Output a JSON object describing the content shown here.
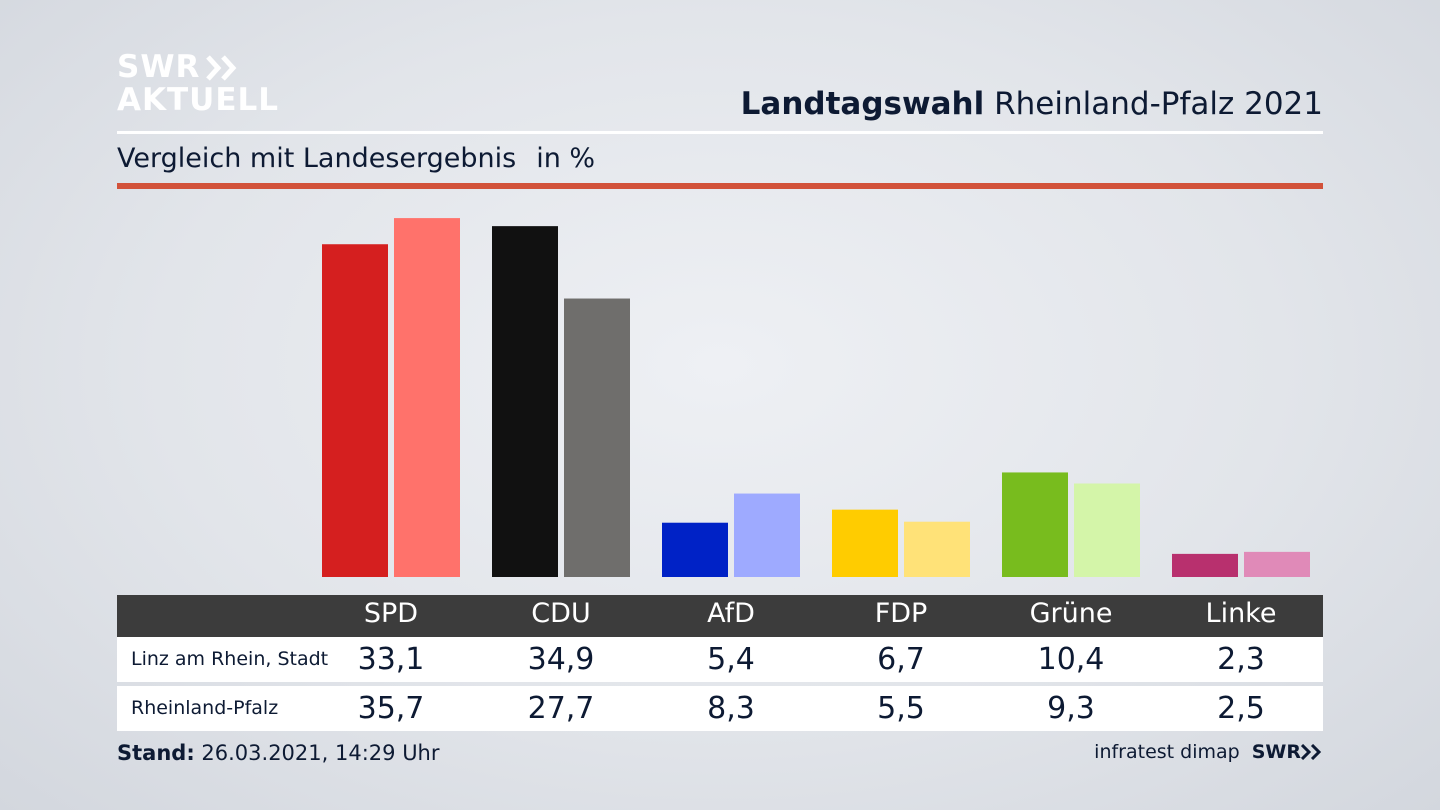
{
  "brand": {
    "line1": "SWR",
    "line2": "AKTUELL",
    "footer_brand": "SWR",
    "source": "infratest dimap"
  },
  "header": {
    "title_bold": "Landtagswahl",
    "title_rest": "Rheinland-Pfalz 2021",
    "subtitle": "Vergleich mit Landesergebnis",
    "unit": "in %"
  },
  "footer": {
    "stand_label": "Stand:",
    "stand_value": "26.03.2021, 14:29 Uhr"
  },
  "chart_data": {
    "type": "bar",
    "categories": [
      "SPD",
      "CDU",
      "AfD",
      "FDP",
      "Grüne",
      "Linke"
    ],
    "series": [
      {
        "name": "Linz am Rhein, Stadt",
        "values": [
          33.1,
          34.9,
          5.4,
          6.7,
          10.4,
          2.3
        ],
        "colors": [
          "#d51f1f",
          "#111111",
          "#0022c6",
          "#ffcc00",
          "#78bc1e",
          "#b8306e"
        ]
      },
      {
        "name": "Rheinland-Pfalz",
        "values": [
          35.7,
          27.7,
          8.3,
          5.5,
          9.3,
          2.5
        ],
        "colors": [
          "#ff726b",
          "#6f6e6c",
          "#9eaaff",
          "#ffe278",
          "#d4f5a9",
          "#e08ab8"
        ]
      }
    ],
    "value_labels": [
      [
        "33,1",
        "34,9",
        "5,4",
        "6,7",
        "10,4",
        "2,3"
      ],
      [
        "35,7",
        "27,7",
        "8,3",
        "5,5",
        "9,3",
        "2,5"
      ]
    ],
    "ylim": [
      0,
      37.5
    ],
    "grid": false
  }
}
